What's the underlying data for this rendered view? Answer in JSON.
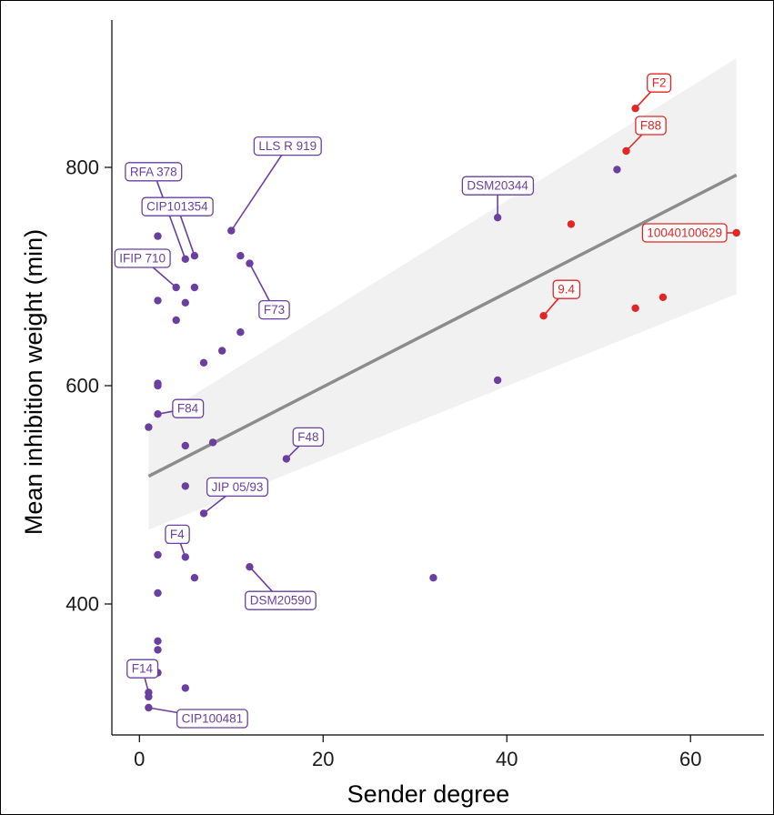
{
  "chart_data": {
    "type": "scatter",
    "xlabel": "Sender degree",
    "ylabel": "Mean inhibition weight (min)",
    "xlim": [
      -3,
      68
    ],
    "ylim": [
      280,
      935
    ],
    "xticks": [
      0,
      20,
      40,
      60
    ],
    "yticks": [
      400,
      600,
      800
    ],
    "grid": false,
    "legend": "none",
    "colors": {
      "purple": "#6b3fa0",
      "red": "#e02626",
      "line": "#8c8c8c",
      "band": "#f1f1f1"
    },
    "trend": {
      "x": [
        1,
        65
      ],
      "y": [
        517,
        793
      ],
      "band_low": [
        468,
        684
      ],
      "band_high": [
        566,
        900
      ]
    },
    "points": [
      {
        "x": 2,
        "y": 737,
        "group": "purple"
      },
      {
        "x": 4,
        "y": 690,
        "group": "purple"
      },
      {
        "x": 5,
        "y": 716,
        "group": "purple"
      },
      {
        "x": 6,
        "y": 719,
        "group": "purple"
      },
      {
        "x": 6,
        "y": 690,
        "group": "purple"
      },
      {
        "x": 2,
        "y": 678,
        "group": "purple"
      },
      {
        "x": 5,
        "y": 676,
        "group": "purple"
      },
      {
        "x": 4,
        "y": 660,
        "group": "purple"
      },
      {
        "x": 10,
        "y": 742,
        "group": "purple"
      },
      {
        "x": 11,
        "y": 719,
        "group": "purple"
      },
      {
        "x": 12,
        "y": 712,
        "group": "purple"
      },
      {
        "x": 11,
        "y": 649,
        "group": "purple"
      },
      {
        "x": 9,
        "y": 632,
        "group": "purple"
      },
      {
        "x": 7,
        "y": 621,
        "group": "purple"
      },
      {
        "x": 2,
        "y": 602,
        "group": "purple"
      },
      {
        "x": 2,
        "y": 600,
        "group": "purple"
      },
      {
        "x": 2,
        "y": 574,
        "group": "purple"
      },
      {
        "x": 1,
        "y": 562,
        "group": "purple"
      },
      {
        "x": 5,
        "y": 545,
        "group": "purple"
      },
      {
        "x": 8,
        "y": 548,
        "group": "purple"
      },
      {
        "x": 16,
        "y": 533,
        "group": "purple"
      },
      {
        "x": 5,
        "y": 508,
        "group": "purple"
      },
      {
        "x": 7,
        "y": 483,
        "group": "purple"
      },
      {
        "x": 2,
        "y": 445,
        "group": "purple"
      },
      {
        "x": 5,
        "y": 443,
        "group": "purple"
      },
      {
        "x": 12,
        "y": 434,
        "group": "purple"
      },
      {
        "x": 6,
        "y": 424,
        "group": "purple"
      },
      {
        "x": 2,
        "y": 410,
        "group": "purple"
      },
      {
        "x": 32,
        "y": 424,
        "group": "purple"
      },
      {
        "x": 39,
        "y": 605,
        "group": "purple"
      },
      {
        "x": 39,
        "y": 754,
        "group": "purple"
      },
      {
        "x": 52,
        "y": 798,
        "group": "purple"
      },
      {
        "x": 2,
        "y": 366,
        "group": "purple"
      },
      {
        "x": 2,
        "y": 358,
        "group": "purple"
      },
      {
        "x": 2,
        "y": 337,
        "group": "purple"
      },
      {
        "x": 5,
        "y": 323,
        "group": "purple"
      },
      {
        "x": 1,
        "y": 319,
        "group": "purple"
      },
      {
        "x": 1,
        "y": 315,
        "group": "purple"
      },
      {
        "x": 1,
        "y": 305,
        "group": "purple"
      },
      {
        "x": 54,
        "y": 854,
        "group": "red"
      },
      {
        "x": 53,
        "y": 815,
        "group": "red"
      },
      {
        "x": 47,
        "y": 748,
        "group": "red"
      },
      {
        "x": 65,
        "y": 740,
        "group": "red"
      },
      {
        "x": 44,
        "y": 664,
        "group": "red"
      },
      {
        "x": 54,
        "y": 671,
        "group": "red"
      },
      {
        "x": 57,
        "y": 681,
        "group": "red"
      }
    ],
    "annotations": [
      {
        "text": "RFA 378",
        "x": 5,
        "y": 716,
        "group": "purple"
      },
      {
        "text": "LLS R 919",
        "x": 10,
        "y": 742,
        "group": "purple"
      },
      {
        "text": "CIP101354",
        "x": 6,
        "y": 719,
        "group": "purple"
      },
      {
        "text": "IFIP 710",
        "x": 4,
        "y": 690,
        "group": "purple"
      },
      {
        "text": "F73",
        "x": 12,
        "y": 712,
        "group": "purple"
      },
      {
        "text": "DSM20344",
        "x": 39,
        "y": 754,
        "group": "purple"
      },
      {
        "text": "F84",
        "x": 2,
        "y": 574,
        "group": "purple"
      },
      {
        "text": "F48",
        "x": 16,
        "y": 533,
        "group": "purple"
      },
      {
        "text": "JIP 05/93",
        "x": 7,
        "y": 483,
        "group": "purple"
      },
      {
        "text": "F4",
        "x": 5,
        "y": 443,
        "group": "purple"
      },
      {
        "text": "DSM20590",
        "x": 12,
        "y": 434,
        "group": "purple"
      },
      {
        "text": "F14",
        "x": 1,
        "y": 319,
        "group": "purple"
      },
      {
        "text": "CIP100481",
        "x": 1,
        "y": 305,
        "group": "purple"
      },
      {
        "text": "F2",
        "x": 54,
        "y": 854,
        "group": "red"
      },
      {
        "text": "F88",
        "x": 53,
        "y": 815,
        "group": "red"
      },
      {
        "text": "10040100629",
        "x": 65,
        "y": 740,
        "group": "red"
      },
      {
        "text": "9.4",
        "x": 44,
        "y": 664,
        "group": "red"
      }
    ]
  }
}
